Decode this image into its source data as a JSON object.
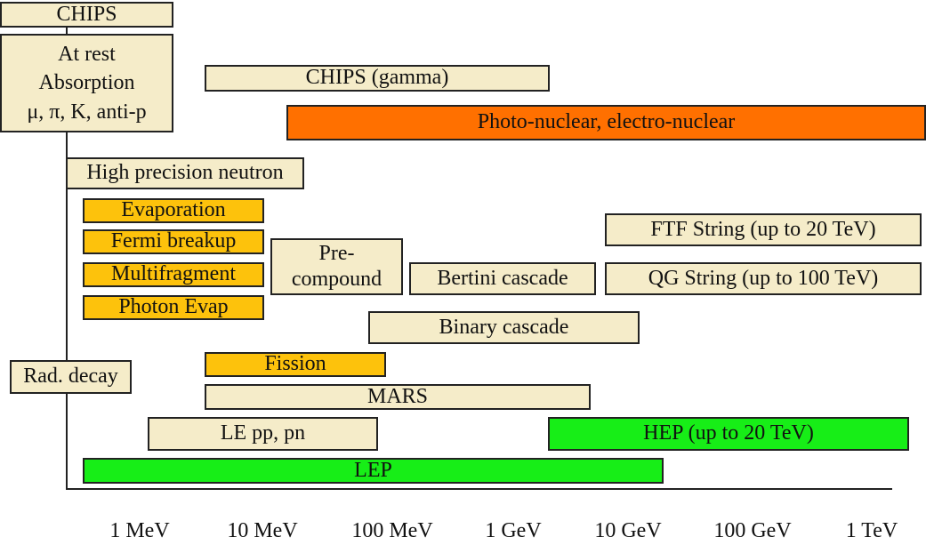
{
  "boxes": {
    "chips": "CHIPS",
    "at_rest": "At rest\nAbsorption\nμ, π, K, anti-p",
    "chips_gamma": "CHIPS (gamma)",
    "photo_nuclear": "Photo-nuclear, electro-nuclear",
    "high_precision_neutron": "High precision neutron",
    "evaporation": "Evaporation",
    "fermi_breakup": "Fermi breakup",
    "multifragment": "Multifragment",
    "photon_evap": "Photon Evap",
    "pre_compound": "Pre-\ncompound",
    "bertini": "Bertini cascade",
    "ftf_string": "FTF String (up to 20 TeV)",
    "qg_string": "QG String (up to 100 TeV)",
    "binary": "Binary cascade",
    "rad_decay": "Rad. decay",
    "fission": "Fission",
    "mars": "MARS",
    "le_pp_pn": "LE pp, pn",
    "hep": "HEP  (up to 20 TeV)",
    "lep": "LEP"
  },
  "axis": {
    "ticks": [
      "1 MeV",
      "10 MeV",
      "100 MeV",
      "1 GeV",
      "10 GeV",
      "100 GeV",
      "1 TeV"
    ]
  },
  "colors": {
    "beige": "#f5ecc9",
    "gold": "#fdc20c",
    "orange": "#ff7000",
    "green": "#17ee17"
  }
}
